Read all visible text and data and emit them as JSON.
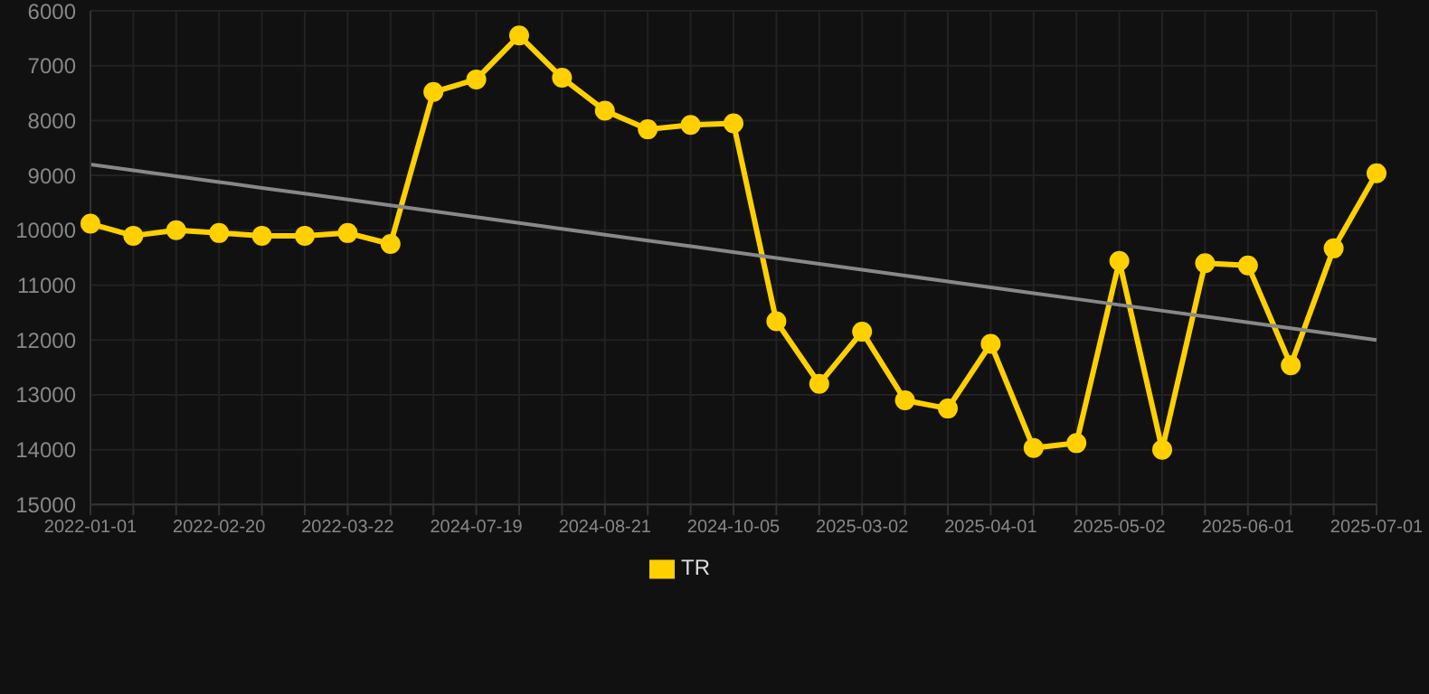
{
  "chart_data": {
    "type": "line",
    "categories": [
      "2022-01-01",
      null,
      null,
      "2022-02-20",
      null,
      null,
      "2022-03-22",
      null,
      null,
      "2024-07-19",
      null,
      null,
      "2024-08-21",
      null,
      null,
      "2024-10-05",
      null,
      null,
      "2025-03-02",
      null,
      null,
      "2025-04-01",
      null,
      null,
      "2025-05-02",
      null,
      null,
      "2025-06-01",
      null,
      null,
      "2025-07-01"
    ],
    "series": [
      {
        "name": "TR",
        "color": "#ffd000",
        "marker": "circle",
        "values": [
          9880,
          10100,
          10000,
          10050,
          10100,
          10100,
          10050,
          10250,
          7480,
          7250,
          6450,
          7220,
          7820,
          8160,
          8080,
          8050,
          11660,
          12800,
          11850,
          13100,
          13250,
          12070,
          13970,
          13880,
          10560,
          14000,
          10600,
          10640,
          12460,
          10330,
          8960
        ]
      },
      {
        "color": "#888888",
        "marker": "none",
        "values": [
          8800,
          8907,
          9013,
          9120,
          9227,
          9333,
          9440,
          9547,
          9653,
          9760,
          9867,
          9973,
          10080,
          10187,
          10293,
          10400,
          10507,
          10613,
          10720,
          10827,
          10933,
          11040,
          11147,
          11253,
          11360,
          11467,
          11573,
          11680,
          11787,
          11893,
          12000
        ]
      }
    ],
    "ylim": [
      15000,
      6000
    ],
    "yticks": [
      6000,
      7000,
      8000,
      9000,
      10000,
      11000,
      12000,
      13000,
      14000,
      15000
    ],
    "grid": true,
    "legend": "bottom"
  }
}
